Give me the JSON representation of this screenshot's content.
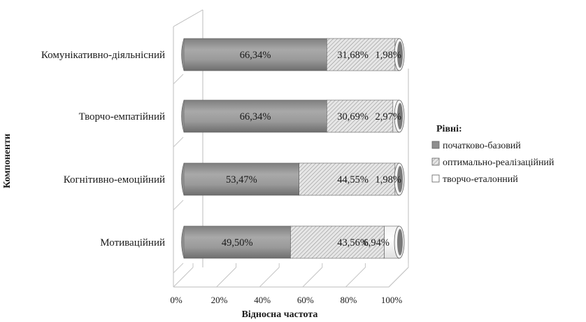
{
  "chart_data": {
    "type": "bar",
    "orientation": "horizontal",
    "stacked": "percent",
    "categories": [
      "Комунікативно-діяльнісний",
      "Творчо-емпатійний",
      "Когнітивно-емоційний",
      "Мотиваційний"
    ],
    "series": [
      {
        "name": "початково-базовий",
        "values": [
          66.34,
          66.34,
          53.47,
          49.5
        ],
        "labels": [
          "66,34%",
          "66,34%",
          "53,47%",
          "49,50%"
        ],
        "color": "#9a9a9a",
        "pattern": "solid"
      },
      {
        "name": "оптимально-реалізаційний",
        "values": [
          31.68,
          30.69,
          44.55,
          43.56
        ],
        "labels": [
          "31,68%",
          "30,69%",
          "44,55%",
          "43,56%"
        ],
        "color": "#d4d4d4",
        "pattern": "hatched"
      },
      {
        "name": "творчо-еталонний",
        "values": [
          1.98,
          2.97,
          1.98,
          6.94
        ],
        "labels": [
          "1,98%",
          "2,97%",
          "1,98%",
          "6,94%"
        ],
        "color": "#ffffff",
        "pattern": "white"
      }
    ],
    "xlabel": "Відносна частота",
    "ylabel": "Компоненти",
    "xlim": [
      0,
      100
    ],
    "xticks": [
      "0%",
      "20%",
      "40%",
      "60%",
      "80%",
      "100%"
    ],
    "legend": {
      "title": "Рівні:",
      "placement": "right"
    },
    "grid": true,
    "style": "3d-cylinder"
  }
}
